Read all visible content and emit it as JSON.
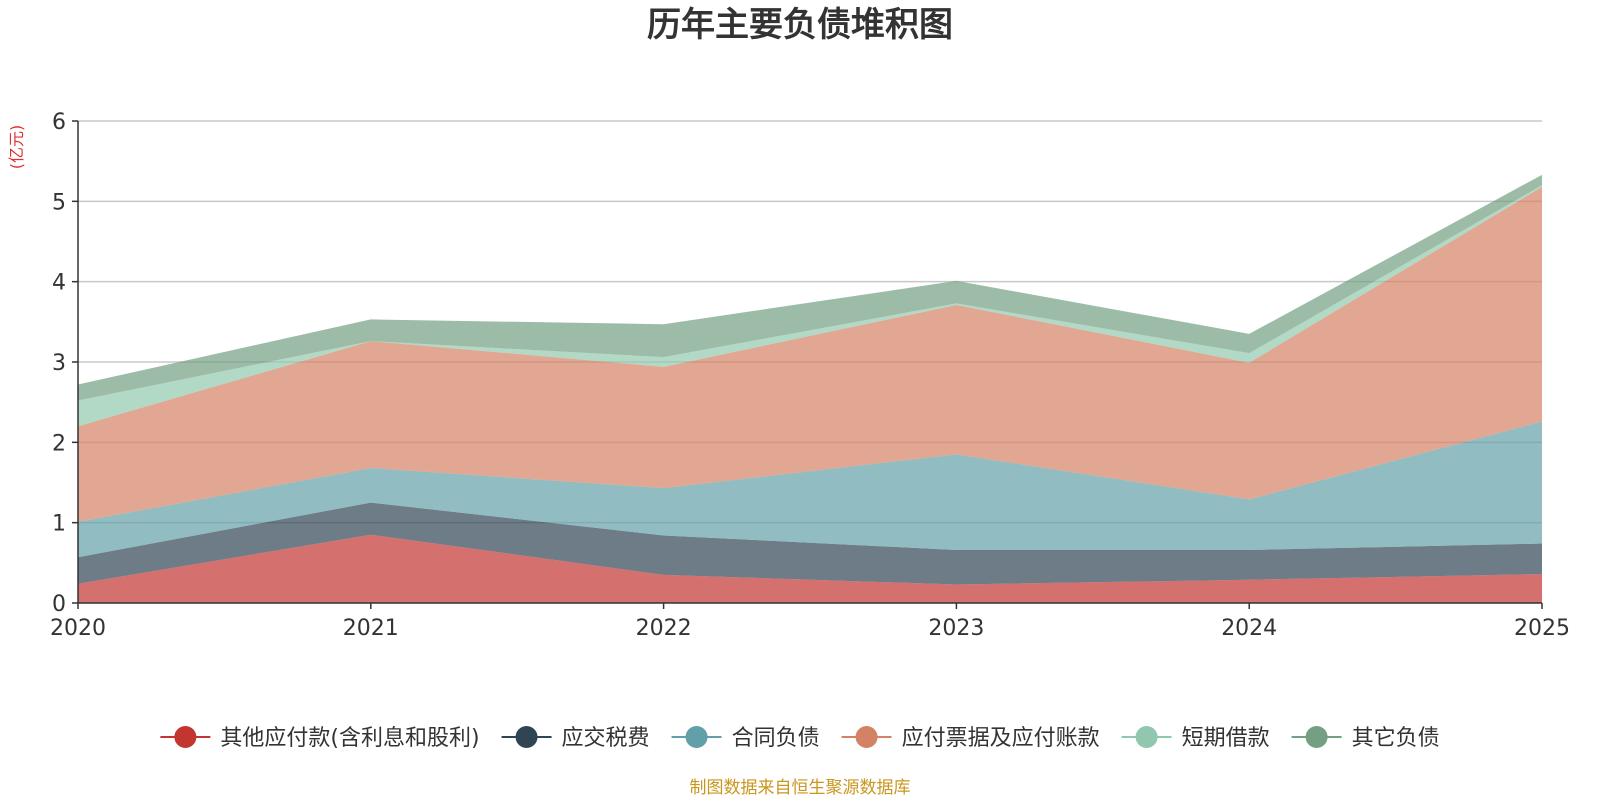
{
  "chart_data": {
    "type": "area",
    "stacked": true,
    "title": "历年主要负债堆积图",
    "ylabel": "(亿元)",
    "xlabel": "",
    "categories": [
      "2020",
      "2021",
      "2022",
      "2023",
      "2024",
      "2025"
    ],
    "yticks": [
      "0",
      "1",
      "2",
      "3",
      "4",
      "5",
      "6"
    ],
    "ylim": [
      0,
      6
    ],
    "grid": true,
    "legend_position": "bottom",
    "series": [
      {
        "name": "其他应付款(含利息和股利)",
        "values": [
          0.24,
          0.85,
          0.35,
          0.23,
          0.29,
          0.36
        ],
        "color": "#c23531"
      },
      {
        "name": "应交税费",
        "values": [
          0.33,
          0.4,
          0.49,
          0.43,
          0.37,
          0.38
        ],
        "color": "#2f4554"
      },
      {
        "name": "合同负债",
        "values": [
          0.44,
          0.43,
          0.59,
          1.19,
          0.63,
          1.52
        ],
        "color": "#61a0a8"
      },
      {
        "name": "应付票据及应付账款",
        "values": [
          1.19,
          1.58,
          1.51,
          1.86,
          1.7,
          2.92
        ],
        "color": "#d48265"
      },
      {
        "name": "短期借款",
        "values": [
          0.32,
          0.0,
          0.12,
          0.02,
          0.12,
          0.02
        ],
        "color": "#91c7ae"
      },
      {
        "name": "其它负债",
        "values": [
          0.2,
          0.27,
          0.41,
          0.28,
          0.24,
          0.13
        ],
        "color": "#749f83"
      }
    ]
  },
  "source_text": "制图数据来自恒生聚源数据库"
}
